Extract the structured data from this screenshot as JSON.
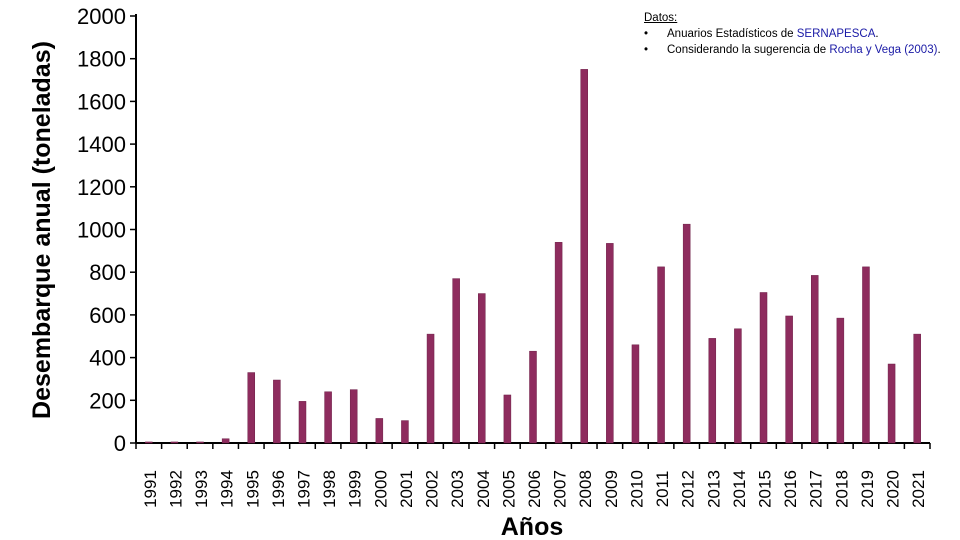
{
  "chart_data": {
    "type": "bar",
    "title": "",
    "xlabel": "Años",
    "ylabel": "Desembarque anual (toneladas)",
    "ylim": [
      0,
      2000
    ],
    "yticks": [
      "0",
      "200",
      "400",
      "600",
      "800",
      "1000",
      "1200",
      "1400",
      "1600",
      "1800",
      "2000"
    ],
    "categories": [
      "1991",
      "1992",
      "1993",
      "1994",
      "1995",
      "1996",
      "1997",
      "1998",
      "1999",
      "2000",
      "2001",
      "2002",
      "2003",
      "2004",
      "2005",
      "2006",
      "2007",
      "2008",
      "2009",
      "2010",
      "2011",
      "2012",
      "2013",
      "2014",
      "2015",
      "2016",
      "2017",
      "2018",
      "2019",
      "2020",
      "2021"
    ],
    "values": [
      5,
      5,
      5,
      20,
      330,
      295,
      195,
      240,
      250,
      115,
      105,
      510,
      770,
      700,
      225,
      430,
      940,
      1750,
      935,
      460,
      825,
      1025,
      490,
      535,
      705,
      595,
      785,
      585,
      825,
      370,
      510
    ],
    "grid": false,
    "legend": "none",
    "bar_color": "#8e2c5e"
  },
  "notes": {
    "title": "Datos:",
    "items": [
      {
        "bullet": "•",
        "text_before": "Anuarios Estadísticos de ",
        "link": "SERNAPESCA",
        "text_after": "."
      },
      {
        "bullet": "•",
        "text_before": "Considerando la sugerencia de ",
        "link": "Rocha y Vega (2003)",
        "text_after": "."
      }
    ]
  }
}
